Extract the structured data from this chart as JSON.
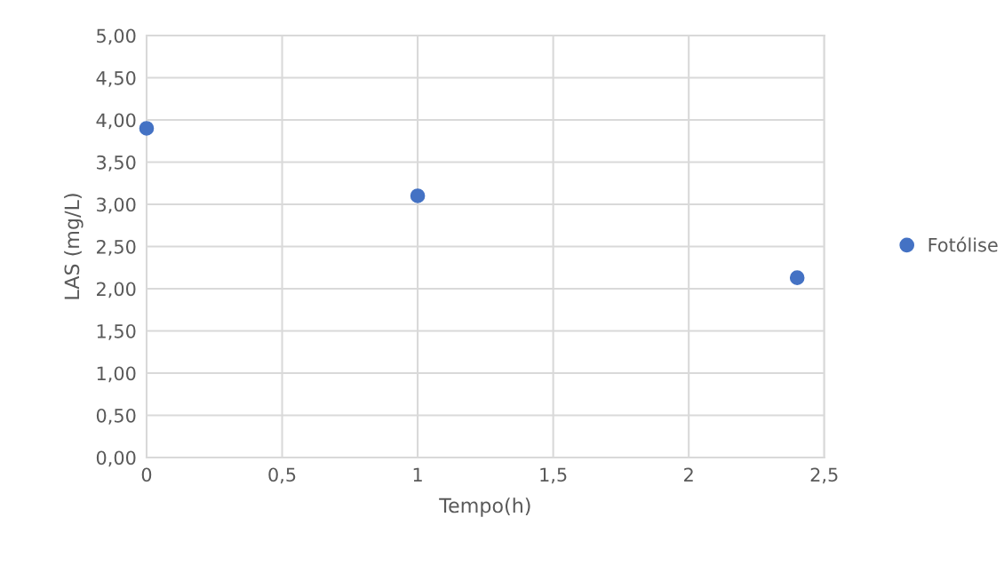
{
  "chart_data": {
    "type": "scatter",
    "xlabel": "Tempo(h)",
    "ylabel": "LAS (mg/L)",
    "x": [
      0,
      1,
      2.4
    ],
    "series": [
      {
        "name": "Fotólise",
        "color": "#4472c4",
        "values": [
          3.9,
          3.1,
          2.13
        ]
      }
    ],
    "xlim": [
      0,
      2.5
    ],
    "xticks": [
      0,
      {
        "value": 0.5,
        "label": "0,5"
      },
      1,
      {
        "value": 1.5,
        "label": "1,5"
      },
      2,
      {
        "value": 2.5,
        "label": "2,5"
      }
    ],
    "ylim": [
      0,
      5
    ],
    "yticks": [
      {
        "value": 0,
        "label": "0,00"
      },
      {
        "value": 0.5,
        "label": "0,50"
      },
      {
        "value": 1,
        "label": "1,00"
      },
      {
        "value": 1.5,
        "label": "1,50"
      },
      {
        "value": 2,
        "label": "2,00"
      },
      {
        "value": 2.5,
        "label": "2,50"
      },
      {
        "value": 3,
        "label": "3,00"
      },
      {
        "value": 3.5,
        "label": "3,50"
      },
      {
        "value": 4,
        "label": "4,00"
      },
      {
        "value": 4.5,
        "label": "4,50"
      },
      {
        "value": 5,
        "label": "5,00"
      }
    ],
    "grid": true,
    "legend": "right",
    "marker": "circle"
  }
}
